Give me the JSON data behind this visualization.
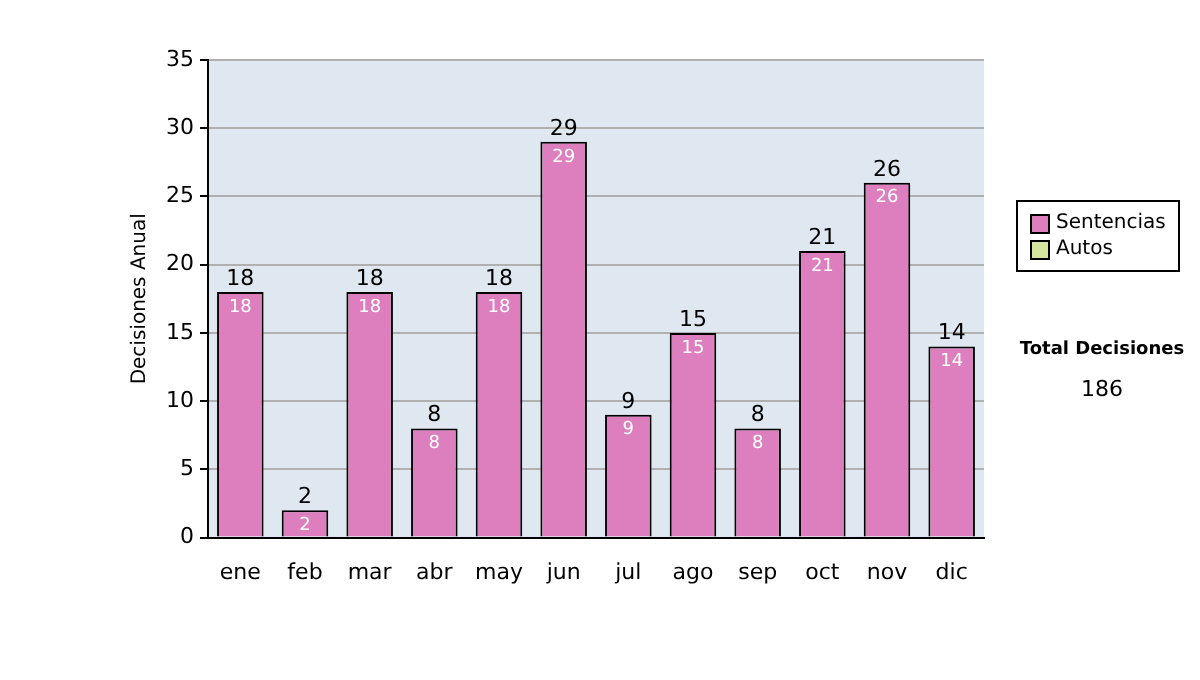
{
  "chart_data": {
    "type": "bar",
    "ylabel": "Decisiones Anual",
    "categories": [
      "ene",
      "feb",
      "mar",
      "abr",
      "may",
      "jun",
      "jul",
      "ago",
      "sep",
      "oct",
      "nov",
      "dic"
    ],
    "stacked": true,
    "series": [
      {
        "name": "Sentencias",
        "color": "#dd7fbf",
        "values": [
          18,
          2,
          18,
          8,
          18,
          29,
          9,
          15,
          8,
          21,
          26,
          14
        ],
        "value_labels": [
          "18",
          "2",
          "18",
          "8",
          "18",
          "29",
          "9",
          "15",
          "8",
          "21",
          "26",
          "14"
        ]
      },
      {
        "name": "Autos",
        "color": "#d4e6a0",
        "values": [
          0,
          0,
          0,
          0,
          0,
          0,
          0,
          0,
          0,
          0,
          0,
          0
        ]
      }
    ],
    "totals": [
      "18",
      "2",
      "18",
      "8",
      "18",
      "29",
      "9",
      "15",
      "8",
      "21",
      "26",
      "14"
    ],
    "ylim": [
      0,
      35
    ],
    "yticks": [
      0,
      5,
      10,
      15,
      20,
      25,
      30,
      35
    ],
    "grid": "y",
    "legend": "right",
    "annotations": [
      "Total Decisiones",
      "186"
    ]
  }
}
